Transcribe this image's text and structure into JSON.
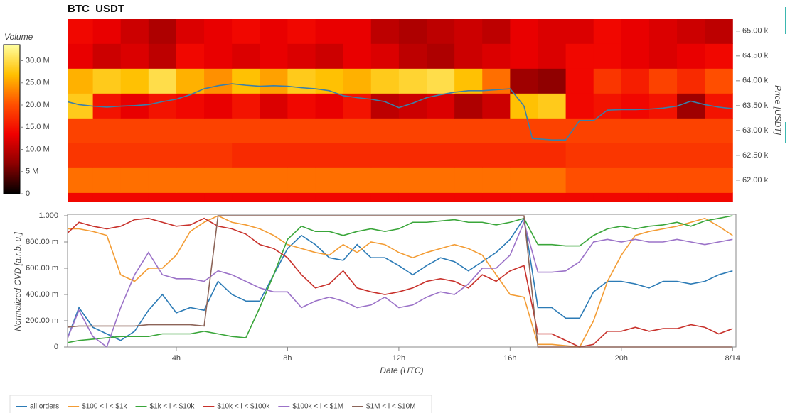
{
  "chart_data": [
    {
      "type": "heatmap",
      "title": "BTC_USDT",
      "colorbar_label": "Volume",
      "y_label": "Price [USDT]",
      "time_bins": [
        0,
        1,
        2,
        3,
        4,
        5,
        6,
        7,
        8,
        9,
        10,
        11,
        12,
        13,
        14,
        15,
        16,
        17,
        18,
        19,
        20,
        21,
        22,
        23,
        24
      ],
      "price_bins": [
        61.25,
        61.75,
        62.25,
        62.75,
        63.25,
        63.75,
        64.25,
        64.75,
        65.25
      ],
      "z": [
        [
          14,
          14,
          14,
          14,
          14,
          14,
          14,
          14,
          14,
          14,
          14,
          14,
          14,
          14,
          14,
          14,
          14,
          14,
          14,
          14,
          14,
          14,
          14,
          14
        ],
        [
          22,
          22,
          22,
          22,
          22,
          22,
          22,
          22,
          22,
          22,
          22,
          22,
          22,
          22,
          22,
          22,
          22,
          22,
          20,
          20,
          20,
          20,
          20,
          20
        ],
        [
          18,
          18,
          18,
          18,
          18,
          18,
          17,
          17,
          17,
          17,
          17,
          17,
          17,
          17,
          17,
          17,
          17,
          17,
          18,
          18,
          18,
          18,
          18,
          18
        ],
        [
          19,
          19,
          19,
          19,
          19,
          19,
          19,
          19,
          19,
          19,
          19,
          19,
          19,
          19,
          19,
          19,
          19,
          19,
          19,
          19,
          19,
          19,
          19,
          19
        ],
        [
          28,
          15,
          13,
          15,
          14,
          13,
          15,
          12,
          14,
          13,
          15,
          10,
          11,
          12,
          9,
          11,
          27,
          28,
          14,
          15,
          14,
          15,
          8,
          15
        ],
        [
          26,
          28,
          27,
          30,
          26,
          24,
          27,
          25,
          28,
          27,
          26,
          28,
          29,
          30,
          27,
          22,
          8,
          7,
          14,
          18,
          16,
          19,
          17,
          20
        ],
        [
          13,
          11,
          12,
          10,
          14,
          13,
          12,
          13,
          12,
          11,
          13,
          12,
          10,
          9,
          11,
          12,
          13,
          12,
          14,
          14,
          13,
          12,
          13,
          14
        ],
        [
          14,
          13,
          11,
          9,
          12,
          13,
          14,
          13,
          14,
          13,
          13,
          10,
          9,
          10,
          11,
          10,
          13,
          12,
          12,
          14,
          13,
          12,
          11,
          10
        ]
      ],
      "colorscale": [
        "#000000",
        "#8c0000",
        "#f00000",
        "#ff5000",
        "#ffc000",
        "#ffffa0"
      ],
      "clim": [
        0,
        33.6
      ],
      "cticks": [
        0,
        {
          "value": 5,
          "label": "5 M"
        },
        {
          "value": 10,
          "label": "10.0 M"
        },
        {
          "value": 15,
          "label": "15.0 M"
        },
        {
          "value": 20,
          "label": "20.0 M"
        },
        {
          "value": 25,
          "label": "25.0 M"
        },
        {
          "value": 30,
          "label": "30.0 M"
        }
      ],
      "price": {
        "color": "#3a7fa8",
        "x": [
          0,
          0.5,
          1,
          1.5,
          2,
          2.5,
          3,
          3.5,
          4,
          4.5,
          5,
          5.5,
          6,
          6.5,
          7,
          7.5,
          8,
          8.5,
          9,
          9.5,
          10,
          10.5,
          11,
          11.5,
          12,
          12.5,
          13,
          13.5,
          14,
          14.5,
          15,
          15.5,
          16,
          16.5,
          16.8,
          17.5,
          18,
          18.5,
          19,
          19.5,
          20,
          20.5,
          21,
          21.5,
          22,
          22.5,
          23,
          23.5,
          24
        ],
        "values": [
          63.59,
          63.52,
          63.49,
          63.47,
          63.49,
          63.5,
          63.52,
          63.58,
          63.63,
          63.72,
          63.84,
          63.9,
          63.94,
          63.91,
          63.89,
          63.9,
          63.89,
          63.86,
          63.84,
          63.8,
          63.7,
          63.66,
          63.63,
          63.58,
          63.46,
          63.55,
          63.66,
          63.72,
          63.77,
          63.8,
          63.8,
          63.82,
          63.84,
          63.49,
          62.84,
          62.81,
          62.81,
          63.2,
          63.2,
          63.41,
          63.42,
          63.42,
          63.43,
          63.45,
          63.49,
          63.59,
          63.52,
          63.47,
          63.44
        ]
      },
      "xlim": [
        0.09,
        24.12
      ],
      "ylim": [
        61.57,
        65.24
      ],
      "yticks": [
        {
          "value": 62.0,
          "label": "62.00 k"
        },
        {
          "value": 62.5,
          "label": "62.50 k"
        },
        {
          "value": 63.0,
          "label": "63.00 k"
        },
        {
          "value": 63.5,
          "label": "63.50 k"
        },
        {
          "value": 64.0,
          "label": "64.00 k"
        },
        {
          "value": 64.5,
          "label": "64.50 k"
        },
        {
          "value": 65.0,
          "label": "65.00 k"
        }
      ]
    },
    {
      "type": "line",
      "x_label": "Date (UTC)",
      "y_label": "Normalized CVD [a.r.b. u.]",
      "x": [
        0,
        0.5,
        1,
        1.5,
        2,
        2.5,
        3,
        3.5,
        4,
        4.5,
        5,
        5.5,
        6,
        6.5,
        7,
        7.5,
        8,
        8.5,
        9,
        9.5,
        10,
        10.5,
        11,
        11.5,
        12,
        12.5,
        13,
        13.5,
        14,
        14.5,
        15,
        15.5,
        16,
        16.5,
        17,
        17.5,
        18,
        18.5,
        19,
        19.5,
        20,
        20.5,
        21,
        21.5,
        22,
        22.5,
        23,
        23.5,
        24
      ],
      "series": [
        {
          "name": "all orders",
          "color": "#2c7bb6",
          "values": [
            0.02,
            0.3,
            0.15,
            0.1,
            0.05,
            0.12,
            0.28,
            0.4,
            0.26,
            0.3,
            0.28,
            0.5,
            0.4,
            0.35,
            0.35,
            0.55,
            0.75,
            0.85,
            0.78,
            0.68,
            0.66,
            0.78,
            0.68,
            0.68,
            0.62,
            0.55,
            0.62,
            0.68,
            0.65,
            0.58,
            0.65,
            0.72,
            0.82,
            0.98,
            0.3,
            0.3,
            0.22,
            0.22,
            0.42,
            0.5,
            0.5,
            0.48,
            0.45,
            0.5,
            0.5,
            0.48,
            0.5,
            0.55,
            0.58
          ]
        },
        {
          "name": "$100 < i < $1k",
          "color": "#f39c34",
          "values": [
            0.9,
            0.9,
            0.88,
            0.85,
            0.55,
            0.5,
            0.6,
            0.6,
            0.7,
            0.88,
            0.95,
            1.0,
            0.95,
            0.93,
            0.9,
            0.85,
            0.78,
            0.75,
            0.72,
            0.7,
            0.78,
            0.72,
            0.8,
            0.78,
            0.72,
            0.68,
            0.72,
            0.75,
            0.78,
            0.75,
            0.7,
            0.55,
            0.4,
            0.38,
            0.02,
            0.02,
            0.01,
            0.0,
            0.2,
            0.5,
            0.7,
            0.85,
            0.88,
            0.9,
            0.92,
            0.95,
            0.98,
            0.92,
            0.85
          ]
        },
        {
          "name": "$1k < i < $10k",
          "color": "#3aa63a",
          "values": [
            0.03,
            0.05,
            0.06,
            0.07,
            0.08,
            0.08,
            0.08,
            0.1,
            0.1,
            0.1,
            0.12,
            0.1,
            0.08,
            0.07,
            0.3,
            0.55,
            0.82,
            0.92,
            0.88,
            0.88,
            0.85,
            0.88,
            0.9,
            0.88,
            0.9,
            0.95,
            0.95,
            0.96,
            0.97,
            0.95,
            0.95,
            0.93,
            0.95,
            0.98,
            0.78,
            0.78,
            0.77,
            0.77,
            0.85,
            0.9,
            0.92,
            0.9,
            0.92,
            0.93,
            0.95,
            0.92,
            0.96,
            0.98,
            1.0
          ]
        },
        {
          "name": "$10k < i < $100k",
          "color": "#c8312b",
          "values": [
            0.85,
            0.95,
            0.92,
            0.9,
            0.92,
            0.97,
            0.98,
            0.95,
            0.92,
            0.93,
            0.98,
            0.92,
            0.9,
            0.86,
            0.78,
            0.75,
            0.68,
            0.55,
            0.45,
            0.48,
            0.58,
            0.45,
            0.42,
            0.4,
            0.42,
            0.45,
            0.5,
            0.52,
            0.5,
            0.45,
            0.55,
            0.5,
            0.58,
            0.62,
            0.1,
            0.1,
            0.05,
            0.0,
            0.02,
            0.12,
            0.12,
            0.15,
            0.12,
            0.14,
            0.14,
            0.17,
            0.15,
            0.1,
            0.14
          ]
        },
        {
          "name": "$100k < i < $1M",
          "color": "#9b72c8",
          "values": [
            0.02,
            0.28,
            0.08,
            0.0,
            0.3,
            0.55,
            0.72,
            0.55,
            0.52,
            0.52,
            0.5,
            0.58,
            0.55,
            0.5,
            0.45,
            0.42,
            0.42,
            0.3,
            0.35,
            0.38,
            0.35,
            0.3,
            0.32,
            0.38,
            0.3,
            0.32,
            0.38,
            0.42,
            0.4,
            0.48,
            0.6,
            0.6,
            0.7,
            0.95,
            0.57,
            0.57,
            0.58,
            0.65,
            0.8,
            0.82,
            0.8,
            0.82,
            0.8,
            0.8,
            0.82,
            0.8,
            0.78,
            0.8,
            0.82
          ]
        },
        {
          "name": "$1M < i < $10M",
          "color": "#8c6458",
          "values": [
            0.15,
            0.16,
            0.16,
            0.16,
            0.16,
            0.16,
            0.17,
            0.17,
            0.17,
            0.17,
            0.16,
            1.0,
            1.0,
            1.0,
            1.0,
            1.0,
            1.0,
            1.0,
            1.0,
            1.0,
            1.0,
            1.0,
            1.0,
            1.0,
            1.0,
            1.0,
            1.0,
            1.0,
            1.0,
            1.0,
            1.0,
            1.0,
            1.0,
            1.0,
            0.0,
            0.0,
            0.0,
            0.0,
            0.0,
            0.0,
            0.0,
            0.0,
            0.0,
            0.0,
            0.0,
            0.0,
            0.0,
            0.0,
            0.0
          ]
        }
      ],
      "xlim": [
        0.09,
        24.12
      ],
      "ylim": [
        0,
        1
      ],
      "xticks": [
        {
          "value": 4,
          "label": "4h"
        },
        {
          "value": 8,
          "label": "8h"
        },
        {
          "value": 12,
          "label": "12h"
        },
        {
          "value": 16,
          "label": "16h"
        },
        {
          "value": 20,
          "label": "20h"
        },
        {
          "value": 24,
          "label": "8/14"
        }
      ],
      "yticks": [
        0,
        {
          "value": 0.2,
          "label": "200.00 m"
        },
        {
          "value": 0.4,
          "label": "400.00 m"
        },
        {
          "value": 0.6,
          "label": "600.00 m"
        },
        {
          "value": 0.8,
          "label": "800.00 m"
        },
        {
          "value": 1,
          "label": "1.000"
        }
      ],
      "legend": "bottom-left"
    }
  ]
}
